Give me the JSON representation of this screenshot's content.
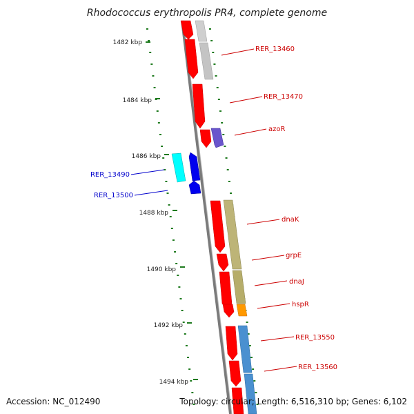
{
  "title": "Rhodococcus erythropolis PR4, complete genome",
  "footer": {
    "accession": "Accession: NC_012490",
    "summary": "Topology: circular; Length: 6,516,310 bp; Genes: 6,102"
  },
  "colors": {
    "backbone": "#808080",
    "tick": "#1e7a1e",
    "label_right": "#cc0000",
    "label_left": "#0000cc"
  },
  "ruler": [
    {
      "label": "1482 kbp"
    },
    {
      "label": "1484 kbp"
    },
    {
      "label": "1486 kbp"
    },
    {
      "label": "1488 kbp"
    },
    {
      "label": "1490 kbp"
    },
    {
      "label": "1492 kbp"
    },
    {
      "label": "1494 kbp"
    }
  ],
  "genes_labeled": [
    {
      "label": "RER_13460",
      "side": "right"
    },
    {
      "label": "RER_13470",
      "side": "right"
    },
    {
      "label": "azoR",
      "side": "right"
    },
    {
      "label": "RER_13490",
      "side": "left"
    },
    {
      "label": "RER_13500",
      "side": "left"
    },
    {
      "label": "dnaK",
      "side": "right"
    },
    {
      "label": "grpE",
      "side": "right"
    },
    {
      "label": "dnaJ",
      "side": "right"
    },
    {
      "label": "hspR",
      "side": "right"
    },
    {
      "label": "RER_13550",
      "side": "right"
    },
    {
      "label": "RER_13560",
      "side": "right"
    }
  ]
}
